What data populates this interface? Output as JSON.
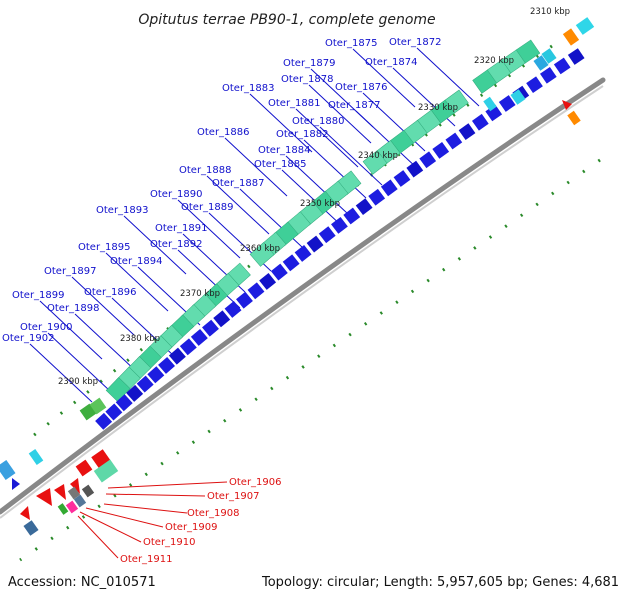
{
  "title": "Opitutus terrae PB90-1, complete genome",
  "accession_text": "Accession: NC_010571",
  "topology_text": "Topology: circular; Length: 5,957,605 bp; Genes: 4,681",
  "colors": {
    "label_blue": "#1010cc",
    "label_red": "#dd1111",
    "forward_genes": "#5ed8a8",
    "reverse_genes": "#1a1ad6",
    "ruler_ticks": "#2a8a2a",
    "backbone": "#777777"
  },
  "kbp_labels": [
    "2310 kbp",
    "2320 kbp",
    "2330 kbp",
    "2340 kbp",
    "2350 kbp",
    "2360 kbp",
    "2370 kbp",
    "2380 kbp",
    "2390 kbp"
  ],
  "genes_blue": [
    "Oter_1872",
    "Oter_1875",
    "Oter_1874",
    "Oter_1879",
    "Oter_1878",
    "Oter_1876",
    "Oter_1883",
    "Oter_1881",
    "Oter_1877",
    "Oter_1880",
    "Oter_1886",
    "Oter_1882",
    "Oter_1884",
    "Oter_1885",
    "Oter_1888",
    "Oter_1887",
    "Oter_1890",
    "Oter_1889",
    "Oter_1893",
    "Oter_1891",
    "Oter_1892",
    "Oter_1895",
    "Oter_1894",
    "Oter_1897",
    "Oter_1896",
    "Oter_1899",
    "Oter_1898",
    "Oter_1900",
    "Oter_1902"
  ],
  "genes_red": [
    "Oter_1906",
    "Oter_1907",
    "Oter_1908",
    "Oter_1909",
    "Oter_1910",
    "Oter_1911"
  ]
}
